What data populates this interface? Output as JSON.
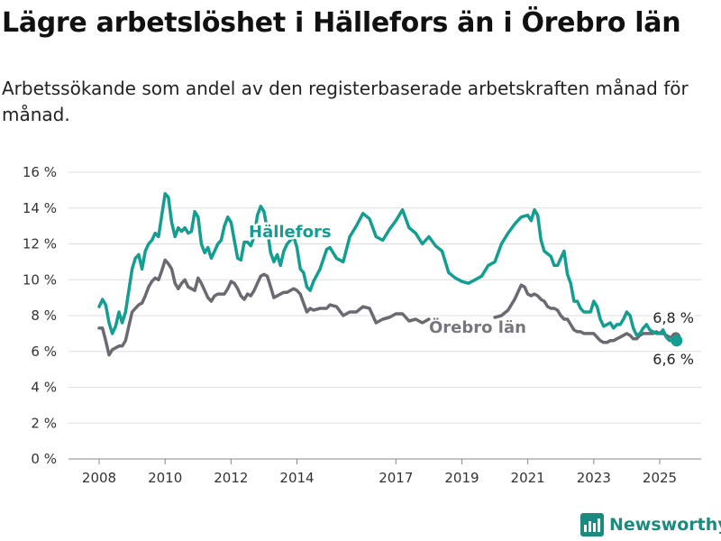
{
  "title": "Lägre arbetslöshet i Hällefors än i Örebro län",
  "subtitle": "Arbetssökande som andel av den registerbaserade arbetskraften månad för månad.",
  "brand": "Newsworthy",
  "chart_data": {
    "type": "line",
    "ylim": [
      0,
      16
    ],
    "xlim": [
      2008,
      2025.75
    ],
    "y_ticks": [
      {
        "value": 0,
        "label": "0 %"
      },
      {
        "value": 2,
        "label": "2 %"
      },
      {
        "value": 4,
        "label": "4 %"
      },
      {
        "value": 6,
        "label": "6 %"
      },
      {
        "value": 8,
        "label": "8 %"
      },
      {
        "value": 10,
        "label": "10 %"
      },
      {
        "value": 12,
        "label": "12 %"
      },
      {
        "value": 14,
        "label": "14 %"
      },
      {
        "value": 16,
        "label": "16 %"
      }
    ],
    "x_ticks": [
      {
        "value": 2008,
        "label": "2008"
      },
      {
        "value": 2010,
        "label": "2010"
      },
      {
        "value": 2012,
        "label": "2012"
      },
      {
        "value": 2014,
        "label": "2014"
      },
      {
        "value": 2017,
        "label": "2017"
      },
      {
        "value": 2019,
        "label": "2019"
      },
      {
        "value": 2021,
        "label": "2021"
      },
      {
        "value": 2023,
        "label": "2023"
      },
      {
        "value": 2025,
        "label": "2025"
      }
    ],
    "grid": true,
    "series": [
      {
        "name": "Hällefors",
        "color": "#149e92",
        "end_label": "6,6 %",
        "points": [
          [
            2008,
            8.5
          ],
          [
            2008.1,
            8.9
          ],
          [
            2008.2,
            8.6
          ],
          [
            2008.3,
            7.6
          ],
          [
            2008.4,
            7.0
          ],
          [
            2008.5,
            7.4
          ],
          [
            2008.6,
            8.2
          ],
          [
            2008.7,
            7.6
          ],
          [
            2008.8,
            8.2
          ],
          [
            2008.9,
            9.4
          ],
          [
            2009.0,
            10.6
          ],
          [
            2009.1,
            11.2
          ],
          [
            2009.2,
            11.4
          ],
          [
            2009.3,
            10.6
          ],
          [
            2009.4,
            11.6
          ],
          [
            2009.5,
            12.0
          ],
          [
            2009.6,
            12.2
          ],
          [
            2009.7,
            12.6
          ],
          [
            2009.8,
            12.4
          ],
          [
            2009.9,
            13.6
          ],
          [
            2010.0,
            14.8
          ],
          [
            2010.1,
            14.6
          ],
          [
            2010.2,
            13.2
          ],
          [
            2010.3,
            12.4
          ],
          [
            2010.4,
            12.9
          ],
          [
            2010.5,
            12.7
          ],
          [
            2010.6,
            12.9
          ],
          [
            2010.7,
            12.6
          ],
          [
            2010.8,
            12.7
          ],
          [
            2010.9,
            13.8
          ],
          [
            2011.0,
            13.5
          ],
          [
            2011.1,
            12.0
          ],
          [
            2011.2,
            11.5
          ],
          [
            2011.3,
            11.8
          ],
          [
            2011.4,
            11.2
          ],
          [
            2011.5,
            11.6
          ],
          [
            2011.6,
            12.0
          ],
          [
            2011.7,
            12.2
          ],
          [
            2011.8,
            13.0
          ],
          [
            2011.9,
            13.5
          ],
          [
            2012.0,
            13.2
          ],
          [
            2012.1,
            12.2
          ],
          [
            2012.2,
            11.2
          ],
          [
            2012.3,
            11.1
          ],
          [
            2012.4,
            12.1
          ],
          [
            2012.5,
            12.1
          ],
          [
            2012.6,
            11.9
          ],
          [
            2012.7,
            12.4
          ],
          [
            2012.8,
            13.6
          ],
          [
            2012.9,
            14.1
          ],
          [
            2013.0,
            13.8
          ],
          [
            2013.1,
            12.8
          ],
          [
            2013.2,
            11.5
          ],
          [
            2013.3,
            11.0
          ],
          [
            2013.4,
            11.4
          ],
          [
            2013.5,
            10.8
          ],
          [
            2013.6,
            11.6
          ],
          [
            2013.7,
            12.0
          ],
          [
            2013.8,
            12.2
          ],
          [
            2013.9,
            12.4
          ],
          [
            2014.0,
            11.8
          ],
          [
            2014.1,
            10.6
          ],
          [
            2014.2,
            10.4
          ],
          [
            2014.3,
            9.6
          ],
          [
            2014.4,
            9.4
          ],
          [
            2014.5,
            9.9
          ],
          [
            2014.7,
            10.6
          ],
          [
            2014.9,
            11.7
          ],
          [
            2015.0,
            11.8
          ],
          [
            2015.2,
            11.2
          ],
          [
            2015.4,
            11.0
          ],
          [
            2015.6,
            12.4
          ],
          [
            2015.8,
            13.0
          ],
          [
            2016.0,
            13.7
          ],
          [
            2016.2,
            13.4
          ],
          [
            2016.4,
            12.4
          ],
          [
            2016.6,
            12.2
          ],
          [
            2016.8,
            12.8
          ],
          [
            2017.0,
            13.3
          ],
          [
            2017.2,
            13.9
          ],
          [
            2017.4,
            12.9
          ],
          [
            2017.6,
            12.6
          ],
          [
            2017.8,
            12.0
          ],
          [
            2018.0,
            12.4
          ],
          [
            2018.2,
            11.9
          ],
          [
            2018.4,
            11.6
          ],
          [
            2018.6,
            10.4
          ],
          [
            2018.8,
            10.1
          ],
          [
            2019.0,
            9.9
          ],
          [
            2019.2,
            9.8
          ],
          [
            2019.4,
            10.0
          ],
          [
            2019.6,
            10.2
          ],
          [
            2019.8,
            10.8
          ],
          [
            2020.0,
            11.0
          ],
          [
            2020.2,
            12.0
          ],
          [
            2020.4,
            12.6
          ],
          [
            2020.6,
            13.1
          ],
          [
            2020.8,
            13.5
          ],
          [
            2021.0,
            13.6
          ],
          [
            2021.1,
            13.3
          ],
          [
            2021.2,
            13.9
          ],
          [
            2021.3,
            13.6
          ],
          [
            2021.4,
            12.2
          ],
          [
            2021.5,
            11.6
          ],
          [
            2021.7,
            11.3
          ],
          [
            2021.8,
            10.8
          ],
          [
            2021.9,
            10.8
          ],
          [
            2022.0,
            11.2
          ],
          [
            2022.1,
            11.6
          ],
          [
            2022.2,
            10.3
          ],
          [
            2022.3,
            9.8
          ],
          [
            2022.4,
            8.8
          ],
          [
            2022.5,
            8.8
          ],
          [
            2022.6,
            8.4
          ],
          [
            2022.7,
            8.2
          ],
          [
            2022.8,
            8.2
          ],
          [
            2022.9,
            8.2
          ],
          [
            2023.0,
            8.8
          ],
          [
            2023.1,
            8.5
          ],
          [
            2023.2,
            7.8
          ],
          [
            2023.3,
            7.4
          ],
          [
            2023.4,
            7.5
          ],
          [
            2023.5,
            7.6
          ],
          [
            2023.6,
            7.3
          ],
          [
            2023.7,
            7.5
          ],
          [
            2023.8,
            7.5
          ],
          [
            2023.9,
            7.8
          ],
          [
            2024.0,
            8.2
          ],
          [
            2024.1,
            8.0
          ],
          [
            2024.2,
            7.3
          ],
          [
            2024.3,
            6.9
          ],
          [
            2024.4,
            7.0
          ],
          [
            2024.5,
            7.3
          ],
          [
            2024.6,
            7.5
          ],
          [
            2024.7,
            7.2
          ],
          [
            2024.8,
            7.1
          ],
          [
            2024.9,
            7.0
          ],
          [
            2025.0,
            7.0
          ],
          [
            2025.1,
            7.2
          ],
          [
            2025.2,
            6.8
          ],
          [
            2025.3,
            6.6
          ],
          [
            2025.4,
            6.6
          ],
          [
            2025.5,
            6.6
          ]
        ]
      },
      {
        "name": "Örebro län",
        "color": "#6b6a72",
        "end_label": "6,8 %",
        "points": [
          [
            2008,
            7.3
          ],
          [
            2008.1,
            7.3
          ],
          [
            2008.2,
            6.6
          ],
          [
            2008.3,
            5.8
          ],
          [
            2008.4,
            6.1
          ],
          [
            2008.5,
            6.2
          ],
          [
            2008.6,
            6.3
          ],
          [
            2008.7,
            6.3
          ],
          [
            2008.8,
            6.6
          ],
          [
            2008.9,
            7.4
          ],
          [
            2009.0,
            8.2
          ],
          [
            2009.1,
            8.4
          ],
          [
            2009.2,
            8.6
          ],
          [
            2009.3,
            8.7
          ],
          [
            2009.4,
            9.1
          ],
          [
            2009.5,
            9.6
          ],
          [
            2009.6,
            9.9
          ],
          [
            2009.7,
            10.1
          ],
          [
            2009.8,
            10.0
          ],
          [
            2009.9,
            10.5
          ],
          [
            2010.0,
            11.1
          ],
          [
            2010.1,
            10.9
          ],
          [
            2010.2,
            10.6
          ],
          [
            2010.3,
            9.8
          ],
          [
            2010.4,
            9.5
          ],
          [
            2010.5,
            9.8
          ],
          [
            2010.6,
            10.0
          ],
          [
            2010.7,
            9.6
          ],
          [
            2010.8,
            9.5
          ],
          [
            2010.9,
            9.4
          ],
          [
            2011.0,
            10.1
          ],
          [
            2011.1,
            9.8
          ],
          [
            2011.2,
            9.4
          ],
          [
            2011.3,
            9.0
          ],
          [
            2011.4,
            8.8
          ],
          [
            2011.5,
            9.1
          ],
          [
            2011.6,
            9.2
          ],
          [
            2011.7,
            9.2
          ],
          [
            2011.8,
            9.2
          ],
          [
            2011.9,
            9.5
          ],
          [
            2012.0,
            9.9
          ],
          [
            2012.1,
            9.8
          ],
          [
            2012.2,
            9.5
          ],
          [
            2012.3,
            9.1
          ],
          [
            2012.4,
            8.9
          ],
          [
            2012.5,
            9.2
          ],
          [
            2012.6,
            9.1
          ],
          [
            2012.7,
            9.4
          ],
          [
            2012.8,
            9.8
          ],
          [
            2012.9,
            10.2
          ],
          [
            2013.0,
            10.3
          ],
          [
            2013.1,
            10.2
          ],
          [
            2013.2,
            9.6
          ],
          [
            2013.3,
            9.0
          ],
          [
            2013.4,
            9.1
          ],
          [
            2013.5,
            9.2
          ],
          [
            2013.6,
            9.3
          ],
          [
            2013.7,
            9.3
          ],
          [
            2013.8,
            9.4
          ],
          [
            2013.9,
            9.5
          ],
          [
            2014.0,
            9.4
          ],
          [
            2014.1,
            9.2
          ],
          [
            2014.2,
            8.7
          ],
          [
            2014.3,
            8.2
          ],
          [
            2014.4,
            8.4
          ],
          [
            2014.5,
            8.3
          ],
          [
            2014.7,
            8.4
          ],
          [
            2014.9,
            8.4
          ],
          [
            2015.0,
            8.6
          ],
          [
            2015.2,
            8.5
          ],
          [
            2015.4,
            8.0
          ],
          [
            2015.6,
            8.2
          ],
          [
            2015.8,
            8.2
          ],
          [
            2016.0,
            8.5
          ],
          [
            2016.2,
            8.4
          ],
          [
            2016.4,
            7.6
          ],
          [
            2016.6,
            7.8
          ],
          [
            2016.8,
            7.9
          ],
          [
            2017.0,
            8.1
          ],
          [
            2017.2,
            8.1
          ],
          [
            2017.4,
            7.7
          ],
          [
            2017.6,
            7.8
          ],
          [
            2017.8,
            7.6
          ],
          [
            2018.0,
            7.8
          ]
        ]
      },
      {
        "name": "",
        "color": "#6b6a72",
        "points": [
          [
            2020.0,
            7.9
          ],
          [
            2020.2,
            8.0
          ],
          [
            2020.4,
            8.3
          ],
          [
            2020.6,
            8.9
          ],
          [
            2020.8,
            9.7
          ],
          [
            2020.9,
            9.6
          ],
          [
            2021.0,
            9.2
          ],
          [
            2021.1,
            9.1
          ],
          [
            2021.2,
            9.2
          ],
          [
            2021.3,
            9.1
          ],
          [
            2021.4,
            8.9
          ],
          [
            2021.5,
            8.8
          ],
          [
            2021.6,
            8.5
          ],
          [
            2021.7,
            8.4
          ],
          [
            2021.8,
            8.4
          ],
          [
            2021.9,
            8.3
          ],
          [
            2022.0,
            8.0
          ],
          [
            2022.1,
            7.8
          ],
          [
            2022.2,
            7.8
          ],
          [
            2022.3,
            7.5
          ],
          [
            2022.4,
            7.2
          ],
          [
            2022.5,
            7.1
          ],
          [
            2022.6,
            7.1
          ],
          [
            2022.7,
            7.0
          ],
          [
            2022.8,
            7.0
          ],
          [
            2022.9,
            7.0
          ],
          [
            2023.0,
            7.0
          ],
          [
            2023.1,
            6.8
          ],
          [
            2023.2,
            6.6
          ],
          [
            2023.3,
            6.5
          ],
          [
            2023.4,
            6.5
          ],
          [
            2023.5,
            6.6
          ],
          [
            2023.6,
            6.6
          ],
          [
            2023.7,
            6.7
          ],
          [
            2023.8,
            6.8
          ],
          [
            2023.9,
            6.9
          ],
          [
            2024.0,
            7.0
          ],
          [
            2024.1,
            6.9
          ],
          [
            2024.2,
            6.7
          ],
          [
            2024.3,
            6.7
          ],
          [
            2024.4,
            6.9
          ],
          [
            2024.5,
            7.0
          ],
          [
            2024.6,
            7.0
          ],
          [
            2024.7,
            7.0
          ],
          [
            2024.8,
            7.0
          ],
          [
            2024.9,
            7.1
          ],
          [
            2025.0,
            7.0
          ],
          [
            2025.1,
            7.0
          ],
          [
            2025.2,
            6.9
          ],
          [
            2025.3,
            6.8
          ],
          [
            2025.4,
            6.8
          ],
          [
            2025.5,
            6.8
          ]
        ]
      }
    ]
  }
}
